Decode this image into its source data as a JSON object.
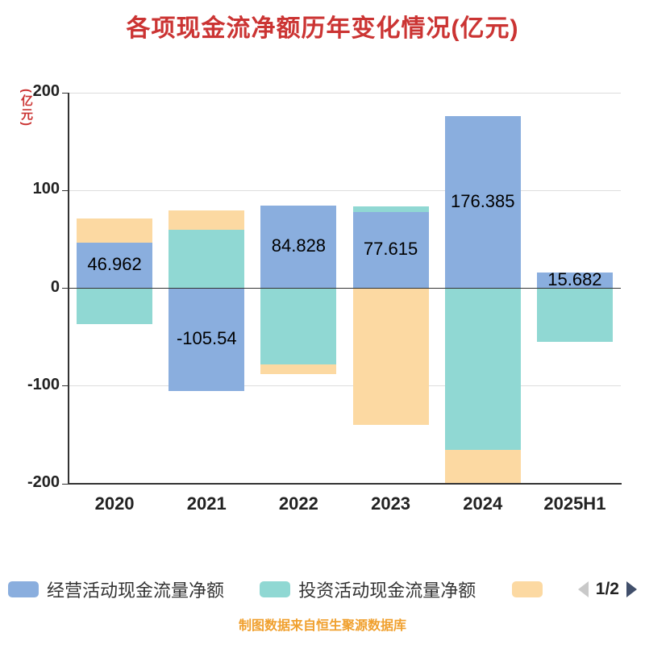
{
  "title": "各项现金流净额历年变化情况(亿元)",
  "unit_label": "(亿元)",
  "footer": "制图数据来自恒生聚源数据库",
  "legend": {
    "pager": "1/2"
  },
  "colors": {
    "title": "#cb3433",
    "unit": "#cb3433",
    "footer": "#f0a02e",
    "axis": "#333333",
    "grid": "#dddddd",
    "series": [
      "#8aaede",
      "#90d8d3",
      "#fcd9a2"
    ],
    "pager_prev": "#c9c9c9",
    "pager_next": "#414f6b"
  },
  "chart_data": {
    "type": "bar",
    "stacked": true,
    "title": "各项现金流净额历年变化情况(亿元)",
    "categories": [
      "2020",
      "2021",
      "2022",
      "2023",
      "2024",
      "2025H1"
    ],
    "series": [
      {
        "name": "经营活动现金流量净额",
        "color": "#8aaede",
        "values": [
          46.962,
          -105.54,
          84.828,
          77.615,
          176.385,
          15.682
        ]
      },
      {
        "name": "投资活动现金流量净额",
        "color": "#90d8d3",
        "values": [
          -37,
          60,
          -78,
          6,
          -165,
          -55
        ]
      },
      {
        "name": "",
        "color": "#fcd9a2",
        "values": [
          24,
          20,
          -10,
          -140,
          -35,
          0
        ]
      }
    ],
    "data_labels": [
      "46.962",
      "-105.54",
      "84.828",
      "77.615",
      "176.385",
      "15.682"
    ],
    "ylim": [
      -200,
      200
    ],
    "yticks": [
      "200",
      "100",
      "0",
      "-100",
      "-200"
    ],
    "grid": true,
    "legend_position": "bottom"
  }
}
